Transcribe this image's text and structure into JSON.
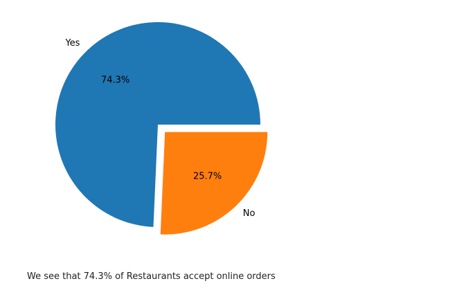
{
  "chart_data": {
    "type": "pie",
    "slices": [
      {
        "label": "Yes",
        "value": 74.3,
        "pct_label": "74.3%",
        "color": "#1f77b4",
        "exploded": false
      },
      {
        "label": "No",
        "value": 25.7,
        "pct_label": "25.7%",
        "color": "#ff7f0e",
        "exploded": true
      }
    ],
    "title": "",
    "legend": "none",
    "start_angle_deg": 0,
    "direction": "counterclockwise"
  },
  "caption": "We see that 74.3% of Restaurants accept online orders"
}
